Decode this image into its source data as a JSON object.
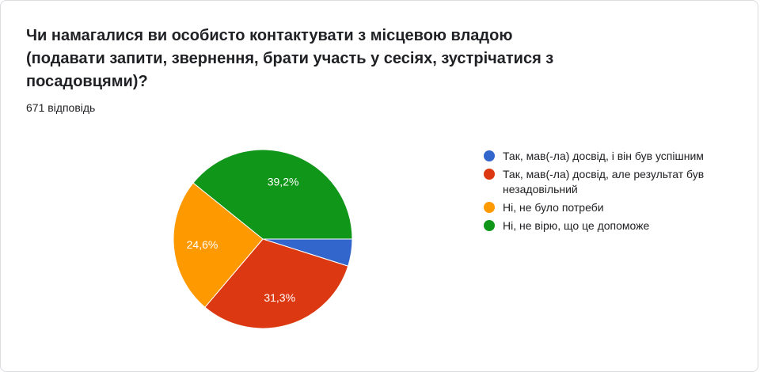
{
  "question": "Чи намагалися ви особисто контактувати з місцевою владою (подавати запити, звернення, брати участь у сесіях, зустрічатися з посадовцями)?",
  "response_count": "671 відповідь",
  "chart_data": {
    "type": "pie",
    "categories": [
      "Так, мав(-ла) досвід, і він був успішним",
      "Так, мав(-ла) досвід, але результат був незадовільний",
      "Ні, не було потреби",
      "Ні, не вірю, що це допоможе"
    ],
    "values": [
      4.9,
      31.3,
      24.6,
      39.2
    ],
    "data_labels": [
      "",
      "31,3%",
      "24,6%",
      "39,2%"
    ],
    "colors": [
      "#3366cc",
      "#dc3912",
      "#ff9900",
      "#109618"
    ],
    "legend_position": "right"
  }
}
